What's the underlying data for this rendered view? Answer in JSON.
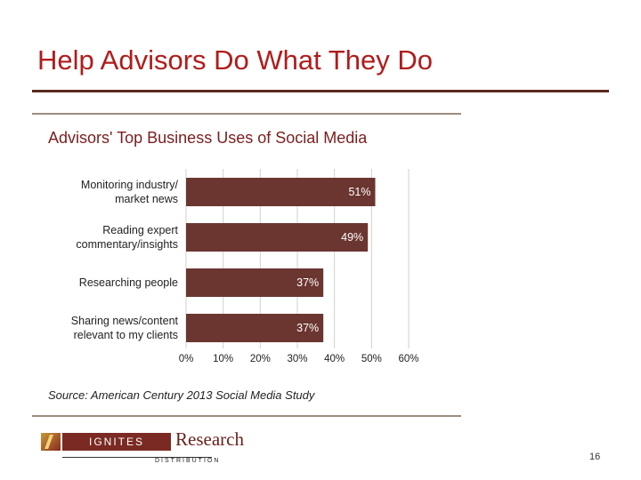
{
  "slide": {
    "title": "Help Advisors Do What They Do",
    "page_number": "16",
    "source_note": "Source: American Century 2013 Social Media Study"
  },
  "logo": {
    "box_text": "IGNITES",
    "word": "Research",
    "sub": "DISTRIBUTION"
  },
  "colors": {
    "title": "#b01c1c",
    "title_rule": "#5a2a1e",
    "bar": "#6b3530",
    "chart_title": "#7a1e1e",
    "grid": "#d0d0d0"
  },
  "chart_data": {
    "type": "bar",
    "orientation": "horizontal",
    "title": "Advisors' Top Business Uses of Social Media",
    "categories": [
      [
        "Monitoring industry/",
        "market news"
      ],
      [
        "Reading expert",
        "commentary/insights"
      ],
      [
        "Researching people"
      ],
      [
        "Sharing news/content",
        "relevant to my clients"
      ]
    ],
    "values": [
      51,
      49,
      37,
      37
    ],
    "data_labels": [
      "51%",
      "49%",
      "37%",
      "37%"
    ],
    "xlim": [
      0,
      60
    ],
    "xticks": [
      0,
      10,
      20,
      30,
      40,
      50,
      60
    ],
    "xtick_labels": [
      "0%",
      "10%",
      "20%",
      "30%",
      "40%",
      "50%",
      "60%"
    ],
    "grid": true,
    "legend": "none"
  }
}
